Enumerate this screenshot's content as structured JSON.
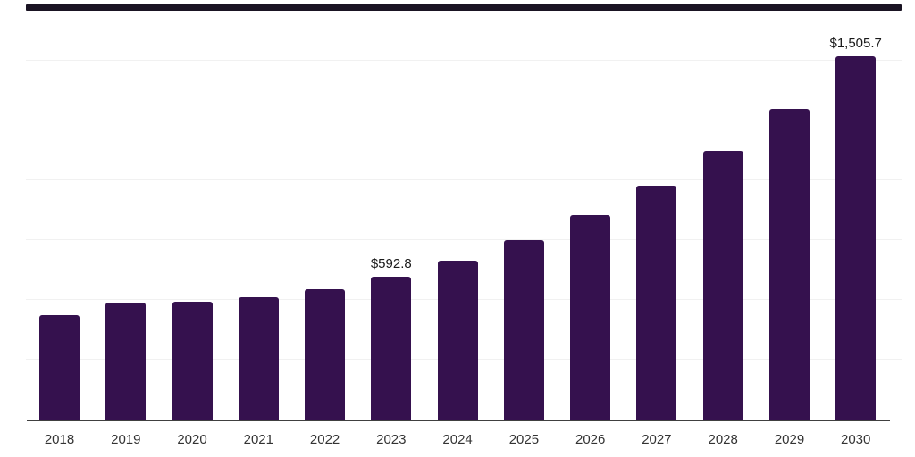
{
  "chart_data": {
    "type": "bar",
    "title": "",
    "xlabel": "",
    "ylabel": "",
    "categories": [
      "2018",
      "2019",
      "2020",
      "2021",
      "2022",
      "2023",
      "2024",
      "2025",
      "2026",
      "2027",
      "2028",
      "2029",
      "2030"
    ],
    "values": [
      434,
      486,
      492,
      508,
      541,
      592.8,
      659,
      746,
      849,
      970,
      1116,
      1289,
      1505.7
    ],
    "labeled_points": [
      {
        "category": "2023",
        "label": "$592.8"
      },
      {
        "category": "2030",
        "label": "$1,505.7"
      }
    ],
    "ylim": [
      0,
      1730
    ],
    "grid": "horizontal",
    "legend": "none",
    "colors": {
      "bar": "#35114E",
      "top_border": "#1A1423",
      "gridline": "#F1F1F1",
      "axis": "#404040",
      "value_label": "#1A1A1A",
      "tick_label": "#333333",
      "background": "#FFFFFF"
    }
  }
}
